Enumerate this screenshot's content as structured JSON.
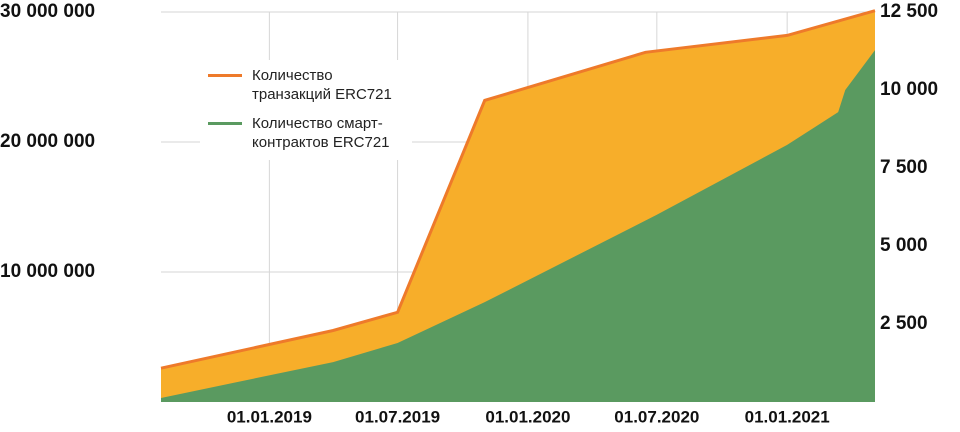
{
  "chart_data": {
    "type": "area",
    "xlim": [
      "2018-08-01",
      "2021-05-05"
    ],
    "xticks": [
      {
        "value": "2019-01-01",
        "label": "01.01.2019"
      },
      {
        "value": "2019-07-01",
        "label": "01.07.2019"
      },
      {
        "value": "2020-01-01",
        "label": "01.01.2020"
      },
      {
        "value": "2020-07-01",
        "label": "01.07.2020"
      },
      {
        "value": "2021-01-01",
        "label": "01.01.2021"
      }
    ],
    "ylim": [
      0,
      30000000
    ],
    "yticks": [
      {
        "value": 10000000,
        "label": "10 000 000"
      },
      {
        "value": 20000000,
        "label": "20 000 000"
      },
      {
        "value": 30000000,
        "label": "30 000 000"
      }
    ],
    "y2lim": [
      0,
      12500
    ],
    "y2ticks": [
      {
        "value": 2500,
        "label": "2 500"
      },
      {
        "value": 5000,
        "label": "5 000"
      },
      {
        "value": 7500,
        "label": "7 500"
      },
      {
        "value": 10000,
        "label": "10 000"
      },
      {
        "value": 12500,
        "label": "12 500"
      }
    ],
    "grid": true,
    "legend": "upper left",
    "series": [
      {
        "name": "Количество транзакций ERC721",
        "color": "#ee7a2a",
        "fill": "#f7ae2a",
        "x": [
          "2018-08-01",
          "2019-04-01",
          "2019-07-01",
          "2019-11-01",
          "2020-06-15",
          "2021-01-01",
          "2021-05-05"
        ],
        "values": [
          2600000,
          5500000,
          6900000,
          23200000,
          26900000,
          28200000,
          30100000
        ]
      },
      {
        "name": "Количество смарт-контрактов ERC721",
        "color": "#5a9a60",
        "axis": "y2",
        "x": [
          "2018-08-01",
          "2019-04-01",
          "2019-07-01",
          "2019-11-01",
          "2020-07-01",
          "2021-01-01",
          "2021-03-14",
          "2021-03-24",
          "2021-05-05"
        ],
        "values": [
          130,
          1280,
          1890,
          3200,
          6000,
          8240,
          9290,
          10000,
          11280
        ]
      }
    ]
  }
}
